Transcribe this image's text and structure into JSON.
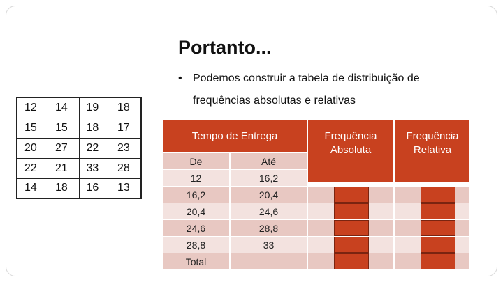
{
  "title": "Portanto...",
  "bullet": {
    "marker": "•",
    "line1": "Podemos construir a tabela de distribuição de",
    "line2": "frequências absolutas e relativas"
  },
  "raw_data": [
    [
      "12",
      "14",
      "19",
      "18"
    ],
    [
      "15",
      "15",
      "18",
      "17"
    ],
    [
      "20",
      "27",
      "22",
      "23"
    ],
    [
      "22",
      "21",
      "33",
      "28"
    ],
    [
      "14",
      "18",
      "16",
      "13"
    ]
  ],
  "distribution": {
    "header_tempo": "Tempo de Entrega",
    "header_abs": "Frequência Absoluta",
    "header_rel": "Frequência Relativa",
    "rows": [
      {
        "de": "De",
        "ate": "Até"
      },
      {
        "de": "12",
        "ate": "16,2"
      },
      {
        "de": "16,2",
        "ate": "20,4"
      },
      {
        "de": "20,4",
        "ate": "24,6"
      },
      {
        "de": "24,6",
        "ate": "28,8"
      },
      {
        "de": "28,8",
        "ate": "33"
      },
      {
        "de": "Total",
        "ate": ""
      }
    ]
  },
  "colors": {
    "accent": "#c8411f",
    "row_dark": "#e8c8c2",
    "row_light": "#f3e2df"
  }
}
